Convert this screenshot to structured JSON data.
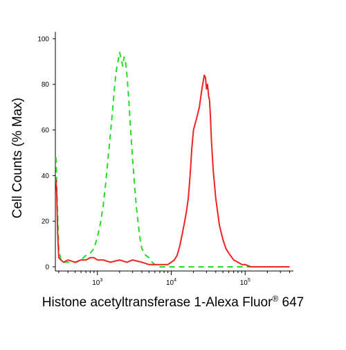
{
  "chart_data": {
    "type": "line",
    "title": "",
    "xlabel": {
      "main": "Histone acetyltransferase 1-Alexa Fluor",
      "superscript": "®",
      "suffix": " 647"
    },
    "ylabel": "Cell Counts (% Max)",
    "x_scale": "log",
    "xlim": [
      270,
      450000
    ],
    "ylim": [
      0,
      103
    ],
    "x_ticks": [
      {
        "value": 1000,
        "base": "10",
        "exp": "3"
      },
      {
        "value": 10000,
        "base": "10",
        "exp": "4"
      },
      {
        "value": 100000,
        "base": "10",
        "exp": "5"
      }
    ],
    "y_ticks": [
      "0",
      "20",
      "40",
      "60",
      "80",
      "100"
    ],
    "grid": false,
    "legend": "none",
    "series": [
      {
        "color": "#22dd22",
        "style": "dashed",
        "x": [
          275,
          285,
          300,
          320,
          350,
          400,
          450,
          520,
          600,
          700,
          800,
          900,
          1000,
          1100,
          1200,
          1300,
          1400,
          1500,
          1600,
          1700,
          1800,
          1900,
          2000,
          2100,
          2200,
          2300,
          2400,
          2500,
          2600,
          2700,
          2800,
          3000,
          3200,
          3400,
          3600,
          3800,
          4000,
          4500,
          5000,
          5500,
          6000,
          7000,
          8000,
          9000,
          10000,
          20000,
          50000,
          100000,
          200000
        ],
        "y": [
          48,
          30,
          8,
          3,
          2,
          2,
          2,
          2,
          3,
          5,
          6,
          8,
          13,
          19,
          27,
          37,
          48,
          58,
          68,
          78,
          86,
          90,
          94,
          91,
          88,
          92,
          90,
          85,
          78,
          70,
          61,
          47,
          35,
          25,
          18,
          12,
          8,
          5,
          4,
          2,
          1,
          0,
          0,
          0,
          0,
          0,
          0,
          0,
          0
        ]
      },
      {
        "color": "#ee2222",
        "style": "solid",
        "x": [
          275,
          282,
          290,
          300,
          320,
          350,
          400,
          500,
          600,
          700,
          800,
          900,
          1000,
          1200,
          1500,
          2000,
          2500,
          3000,
          4000,
          5000,
          6000,
          7000,
          8000,
          9000,
          10000,
          11000,
          12000,
          13000,
          14000,
          15000,
          16000,
          17000,
          18000,
          19000,
          20000,
          22000,
          24000,
          26000,
          28000,
          29000,
          30000,
          31000,
          32000,
          33000,
          34000,
          35000,
          37000,
          40000,
          45000,
          50000,
          55000,
          60000,
          70000,
          80000,
          90000,
          100000,
          120000,
          150000,
          200000,
          300000,
          400000
        ],
        "y": [
          38,
          32,
          15,
          4,
          3,
          2,
          3,
          2,
          3,
          3,
          4,
          4,
          3,
          3,
          2,
          3,
          2,
          3,
          2,
          1,
          1,
          1,
          1,
          1,
          2,
          3,
          5,
          9,
          14,
          19,
          24,
          30,
          40,
          52,
          60,
          65,
          70,
          78,
          84,
          83,
          78,
          80,
          75,
          73,
          65,
          55,
          42,
          30,
          18,
          12,
          8,
          6,
          3,
          2,
          1,
          1,
          0,
          0,
          0,
          0,
          0
        ]
      }
    ]
  }
}
